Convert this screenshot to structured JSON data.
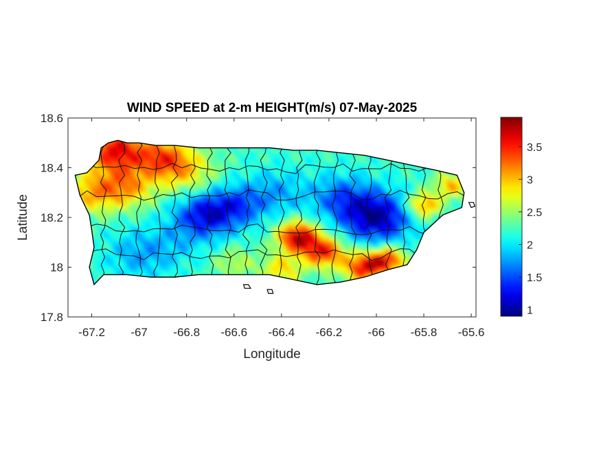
{
  "title": "WIND SPEED at 2-m HEIGHT(m/s) 07-May-2025",
  "xlabel": "Longitude",
  "ylabel": "Latitude",
  "chart_data": {
    "type": "heatmap",
    "title": "WIND SPEED at 2-m HEIGHT(m/s) 07-May-2025",
    "xlabel": "Longitude",
    "ylabel": "Latitude",
    "xlim": [
      -67.3,
      -65.58
    ],
    "ylim": [
      17.8,
      18.6
    ],
    "xticks": [
      -67.2,
      -67,
      -66.8,
      -66.6,
      -66.4,
      -66.2,
      -66,
      -65.8,
      -65.6
    ],
    "xtick_labels": [
      "-67.2",
      "-67",
      "-66.8",
      "-66.6",
      "-66.4",
      "-66.2",
      "-66",
      "-65.8",
      "-65.6"
    ],
    "yticks": [
      17.8,
      18,
      18.2,
      18.4,
      18.6
    ],
    "ytick_labels": [
      "17.8",
      "18",
      "18.2",
      "18.4",
      "18.6"
    ],
    "colormap": "jet",
    "clim": [
      0.9,
      3.95
    ],
    "colorbar_ticks": [
      1,
      1.5,
      2,
      2.5,
      3,
      3.5
    ],
    "colorbar_labels": [
      "1",
      "1.5",
      "2",
      "2.5",
      "3",
      "3.5"
    ],
    "grid": false,
    "island_outline": [
      [
        -67.27,
        18.37
      ],
      [
        -67.22,
        18.38
      ],
      [
        -67.17,
        18.43
      ],
      [
        -67.16,
        18.48
      ],
      [
        -67.13,
        18.5
      ],
      [
        -67.09,
        18.51
      ],
      [
        -67.05,
        18.5
      ],
      [
        -67.0,
        18.5
      ],
      [
        -66.93,
        18.49
      ],
      [
        -66.85,
        18.49
      ],
      [
        -66.75,
        18.48
      ],
      [
        -66.65,
        18.48
      ],
      [
        -66.55,
        18.48
      ],
      [
        -66.45,
        18.48
      ],
      [
        -66.35,
        18.47
      ],
      [
        -66.25,
        18.47
      ],
      [
        -66.15,
        18.46
      ],
      [
        -66.05,
        18.45
      ],
      [
        -65.95,
        18.43
      ],
      [
        -65.85,
        18.41
      ],
      [
        -65.75,
        18.39
      ],
      [
        -65.66,
        18.37
      ],
      [
        -65.63,
        18.3
      ],
      [
        -65.64,
        18.24
      ],
      [
        -65.72,
        18.21
      ],
      [
        -65.8,
        18.14
      ],
      [
        -65.83,
        18.07
      ],
      [
        -65.87,
        18.01
      ],
      [
        -65.95,
        17.99
      ],
      [
        -66.05,
        17.96
      ],
      [
        -66.15,
        17.94
      ],
      [
        -66.25,
        17.93
      ],
      [
        -66.35,
        17.95
      ],
      [
        -66.45,
        17.97
      ],
      [
        -66.55,
        17.97
      ],
      [
        -66.65,
        17.97
      ],
      [
        -66.75,
        17.97
      ],
      [
        -66.85,
        17.96
      ],
      [
        -66.95,
        17.96
      ],
      [
        -67.05,
        17.97
      ],
      [
        -67.15,
        17.97
      ],
      [
        -67.19,
        17.93
      ],
      [
        -67.21,
        18.0
      ],
      [
        -67.19,
        18.08
      ],
      [
        -67.2,
        18.15
      ],
      [
        -67.21,
        18.21
      ],
      [
        -67.25,
        18.29
      ],
      [
        -67.27,
        18.37
      ]
    ],
    "small_islets": [
      [
        [
          -66.56,
          17.93
        ],
        [
          -66.54,
          17.93
        ],
        [
          -66.53,
          17.915
        ],
        [
          -66.555,
          17.915
        ],
        [
          -66.56,
          17.93
        ]
      ],
      [
        [
          -66.46,
          17.91
        ],
        [
          -66.44,
          17.91
        ],
        [
          -66.435,
          17.895
        ],
        [
          -66.455,
          17.895
        ],
        [
          -66.46,
          17.91
        ]
      ],
      [
        [
          -65.61,
          18.26
        ],
        [
          -65.59,
          18.26
        ],
        [
          -65.585,
          18.245
        ],
        [
          -65.6,
          18.24
        ],
        [
          -65.61,
          18.26
        ]
      ]
    ],
    "wind_field": {
      "background": 2.2,
      "features": [
        {
          "lon": -67.1,
          "lat": 18.47,
          "value": 3.6,
          "spread": 0.09
        },
        {
          "lon": -66.9,
          "lat": 18.44,
          "value": 3.2,
          "spread": 0.08
        },
        {
          "lon": -67.2,
          "lat": 18.3,
          "value": 3.0,
          "spread": 0.08
        },
        {
          "lon": -67.05,
          "lat": 18.32,
          "value": 3.0,
          "spread": 0.08
        },
        {
          "lon": -66.8,
          "lat": 18.38,
          "value": 2.8,
          "spread": 0.09
        },
        {
          "lon": -66.72,
          "lat": 18.21,
          "value": 1.2,
          "spread": 0.09
        },
        {
          "lon": -66.58,
          "lat": 18.25,
          "value": 1.6,
          "spread": 0.08
        },
        {
          "lon": -66.42,
          "lat": 18.3,
          "value": 1.8,
          "spread": 0.09
        },
        {
          "lon": -66.0,
          "lat": 18.2,
          "value": 1.0,
          "spread": 0.1
        },
        {
          "lon": -66.15,
          "lat": 18.28,
          "value": 1.6,
          "spread": 0.09
        },
        {
          "lon": -67.0,
          "lat": 18.05,
          "value": 1.8,
          "spread": 0.1
        },
        {
          "lon": -66.85,
          "lat": 18.1,
          "value": 2.0,
          "spread": 0.09
        },
        {
          "lon": -66.33,
          "lat": 18.12,
          "value": 3.8,
          "spread": 0.06
        },
        {
          "lon": -66.22,
          "lat": 18.06,
          "value": 3.5,
          "spread": 0.06
        },
        {
          "lon": -66.05,
          "lat": 18.0,
          "value": 3.6,
          "spread": 0.06
        },
        {
          "lon": -65.95,
          "lat": 18.03,
          "value": 3.4,
          "spread": 0.05
        },
        {
          "lon": -65.8,
          "lat": 18.25,
          "value": 3.2,
          "spread": 0.05
        },
        {
          "lon": -65.68,
          "lat": 18.33,
          "value": 3.0,
          "spread": 0.05
        },
        {
          "lon": -66.4,
          "lat": 17.99,
          "value": 2.9,
          "spread": 0.06
        },
        {
          "lon": -66.6,
          "lat": 18.02,
          "value": 2.6,
          "spread": 0.06
        }
      ]
    }
  }
}
